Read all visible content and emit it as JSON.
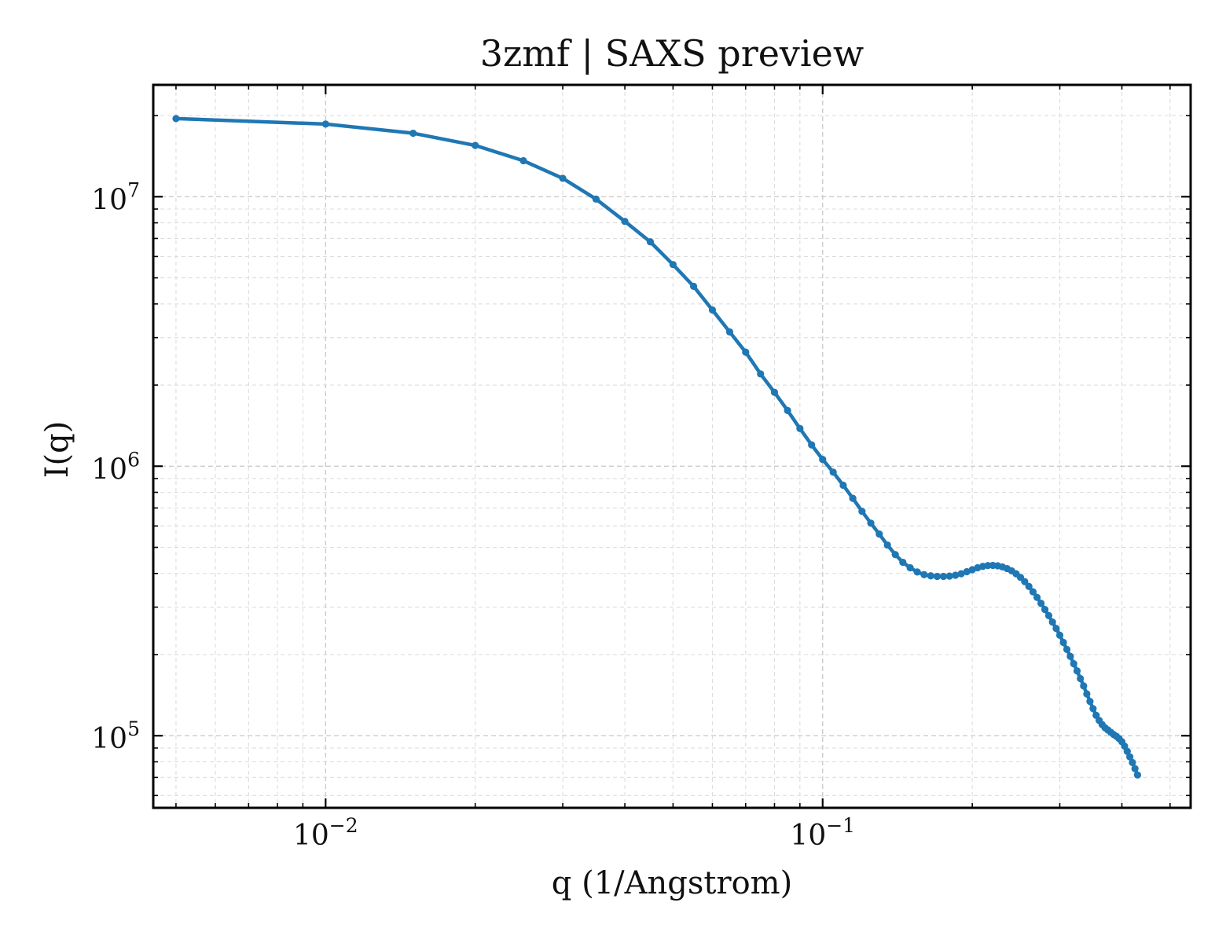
{
  "chart_data": {
    "type": "line",
    "title": "3zmf | SAXS preview",
    "xlabel": "q (1/Angstrom)",
    "ylabel": "I(q)",
    "xscale": "log",
    "yscale": "log",
    "xlim": [
      0.0045,
      0.55
    ],
    "ylim": [
      54000,
      26000000
    ],
    "grid": "on",
    "x_ticks": [
      {
        "base": "10",
        "exp": "−2",
        "value": 0.01
      },
      {
        "base": "10",
        "exp": "−1",
        "value": 0.1
      }
    ],
    "y_ticks": [
      {
        "base": "10",
        "exp": "5",
        "value": 100000
      },
      {
        "base": "10",
        "exp": "6",
        "value": 1000000
      },
      {
        "base": "10",
        "exp": "7",
        "value": 10000000
      }
    ],
    "colors": {
      "series": "#1f77b4"
    },
    "series": [
      {
        "name": "",
        "marker": "dot",
        "points": [
          [
            0.005,
            19500000
          ],
          [
            0.01,
            18600000
          ],
          [
            0.015,
            17200000
          ],
          [
            0.02,
            15500000
          ],
          [
            0.025,
            13600000
          ],
          [
            0.03,
            11700000
          ],
          [
            0.035,
            9800000
          ],
          [
            0.04,
            8100000
          ],
          [
            0.045,
            6800000
          ],
          [
            0.05,
            5600000
          ],
          [
            0.055,
            4650000
          ],
          [
            0.06,
            3800000
          ],
          [
            0.065,
            3150000
          ],
          [
            0.07,
            2650000
          ],
          [
            0.075,
            2200000
          ],
          [
            0.08,
            1880000
          ],
          [
            0.085,
            1610000
          ],
          [
            0.09,
            1380000
          ],
          [
            0.095,
            1200000
          ],
          [
            0.1,
            1060000
          ],
          [
            0.105,
            950000
          ],
          [
            0.11,
            850000
          ],
          [
            0.115,
            760000
          ],
          [
            0.12,
            680000
          ],
          [
            0.125,
            615000
          ],
          [
            0.13,
            560000
          ],
          [
            0.135,
            510000
          ],
          [
            0.14,
            470000
          ],
          [
            0.145,
            440000
          ],
          [
            0.15,
            420000
          ],
          [
            0.155,
            405000
          ],
          [
            0.16,
            396000
          ],
          [
            0.165,
            392000
          ],
          [
            0.17,
            390000
          ],
          [
            0.175,
            390000
          ],
          [
            0.18,
            391000
          ],
          [
            0.185,
            394000
          ],
          [
            0.19,
            399000
          ],
          [
            0.195,
            406000
          ],
          [
            0.2,
            413000
          ],
          [
            0.205,
            420000
          ],
          [
            0.21,
            425000
          ],
          [
            0.215,
            428000
          ],
          [
            0.22,
            428500
          ],
          [
            0.225,
            427000
          ],
          [
            0.23,
            423000
          ],
          [
            0.235,
            417000
          ],
          [
            0.24,
            409000
          ],
          [
            0.245,
            399000
          ],
          [
            0.25,
            387000
          ],
          [
            0.255,
            373000
          ],
          [
            0.26,
            358000
          ],
          [
            0.265,
            342000
          ],
          [
            0.27,
            326000
          ],
          [
            0.275,
            310000
          ],
          [
            0.28,
            294000
          ],
          [
            0.285,
            279000
          ],
          [
            0.29,
            264000
          ],
          [
            0.295,
            250000
          ],
          [
            0.3,
            236000
          ],
          [
            0.305,
            222000
          ],
          [
            0.31,
            209000
          ],
          [
            0.315,
            197000
          ],
          [
            0.32,
            185000
          ],
          [
            0.325,
            174000
          ],
          [
            0.33,
            163000
          ],
          [
            0.335,
            153000
          ],
          [
            0.34,
            143000
          ],
          [
            0.345,
            134000
          ],
          [
            0.35,
            126000
          ],
          [
            0.355,
            119000
          ],
          [
            0.36,
            114000
          ],
          [
            0.365,
            110000
          ],
          [
            0.37,
            107000
          ],
          [
            0.375,
            105000
          ],
          [
            0.38,
            103000
          ],
          [
            0.385,
            101000
          ],
          [
            0.39,
            99500
          ],
          [
            0.395,
            97500
          ],
          [
            0.4,
            95000
          ],
          [
            0.405,
            91500
          ],
          [
            0.41,
            87500
          ],
          [
            0.415,
            83500
          ],
          [
            0.42,
            79500
          ],
          [
            0.425,
            75500
          ],
          [
            0.43,
            71500
          ]
        ]
      }
    ]
  }
}
